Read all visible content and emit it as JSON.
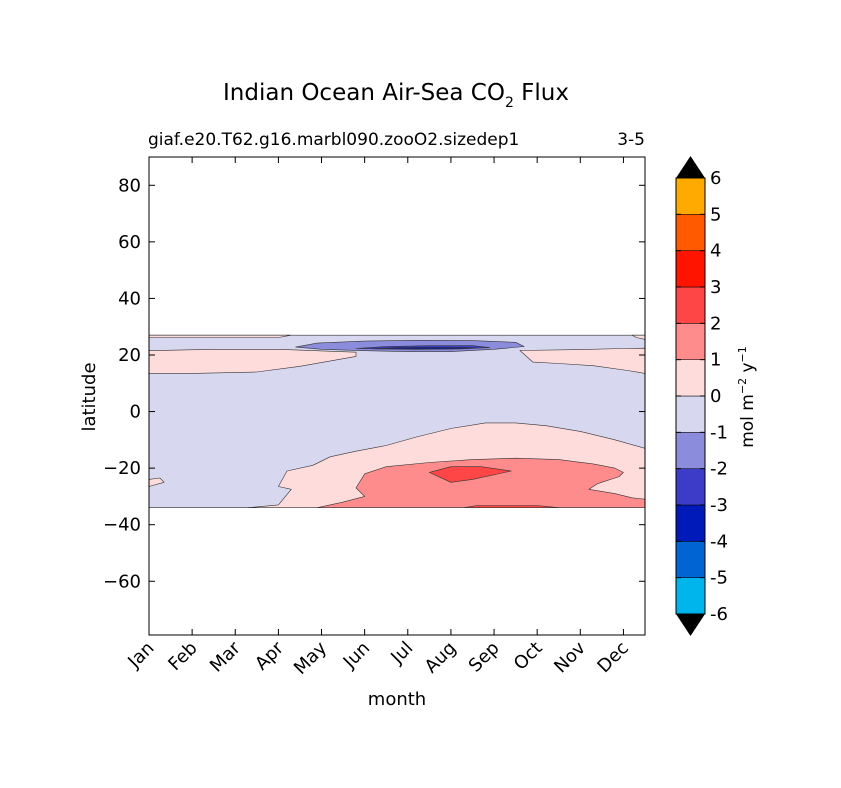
{
  "figure": {
    "title": "Indian Ocean Air-Sea CO",
    "title_sub": "2",
    "title_suffix": " Flux",
    "case_label": "giaf.e20.T62.g16.marbl090.zooO2.sizedep1",
    "period_label": "3-5"
  },
  "chart_data": {
    "type": "heatmap",
    "title": "Indian Ocean Air-Sea CO2 Flux",
    "xlabel": "month",
    "ylabel": "latitude",
    "x_ticks": [
      "Jan",
      "Feb",
      "Mar",
      "Apr",
      "May",
      "Jun",
      "Jul",
      "Aug",
      "Sep",
      "Oct",
      "Nov",
      "Dec"
    ],
    "xlim": [
      0,
      11.5
    ],
    "y_ticks": [
      80,
      60,
      40,
      20,
      0,
      -20,
      -40,
      -60
    ],
    "y_tick_labels": [
      "80",
      "60",
      "40",
      "20",
      "0",
      "−20",
      "−40",
      "−60"
    ],
    "ylim": [
      -79,
      90
    ],
    "data_lat_range": [
      -34,
      27
    ],
    "grid": false,
    "colorbar": {
      "label": "mol m",
      "label_sup1": "−2",
      "label_mid": "  y",
      "label_sup2": "−1",
      "levels": [
        -7,
        -6,
        -5,
        -4,
        -3,
        -2,
        -1,
        0,
        1,
        2,
        3,
        4,
        5,
        6,
        7
      ],
      "tick_labels": [
        "-6",
        "-5",
        "-4",
        "-3",
        "-2",
        "-1",
        "0",
        "1",
        "2",
        "3",
        "4",
        "5",
        "6"
      ],
      "tick_values": [
        -6,
        -5,
        -4,
        -3,
        -2,
        -1,
        0,
        1,
        2,
        3,
        4,
        5,
        6
      ],
      "colors": [
        "#00ffff",
        "#00b4ec",
        "#0064d2",
        "#0019b9",
        "#3c3cc8",
        "#8c8cdc",
        "#d7d7f0",
        "#ffdcdc",
        "#ff8c8c",
        "#ff4646",
        "#ff1400",
        "#ff5a00",
        "#ffaa00",
        "#ffff00"
      ],
      "extend": "both"
    },
    "contour_regions": [
      {
        "level_range": [
          -1,
          0
        ],
        "points": [
          [
            0,
            27
          ],
          [
            11.5,
            27
          ],
          [
            11.5,
            -34
          ],
          [
            0,
            -34
          ]
        ]
      },
      {
        "level_range": [
          0,
          1
        ],
        "points": [
          [
            0,
            27
          ],
          [
            3.3,
            27
          ],
          [
            3.0,
            26.2
          ],
          [
            0,
            26.2
          ]
        ]
      },
      {
        "level_range": [
          0,
          1
        ],
        "points": [
          [
            11.5,
            27
          ],
          [
            11.5,
            25.5
          ],
          [
            11.3,
            26.2
          ],
          [
            11.2,
            27
          ]
        ]
      },
      {
        "level_range": [
          0,
          1
        ],
        "points": [
          [
            0,
            21.5
          ],
          [
            1.5,
            22
          ],
          [
            3.0,
            22
          ],
          [
            4.8,
            21
          ],
          [
            4.8,
            19.5
          ],
          [
            3.5,
            16
          ],
          [
            2.5,
            14
          ],
          [
            1.0,
            13.5
          ],
          [
            0,
            13.5
          ]
        ]
      },
      {
        "level_range": [
          0,
          1
        ],
        "points": [
          [
            8.6,
            21.6
          ],
          [
            10.0,
            21.9
          ],
          [
            11.0,
            22.3
          ],
          [
            11.5,
            22.4
          ],
          [
            11.5,
            13.5
          ],
          [
            11.1,
            14.5
          ],
          [
            10.3,
            16.2
          ],
          [
            9.5,
            17
          ],
          [
            8.9,
            17.5
          ]
        ]
      },
      {
        "level_range": [
          0,
          1
        ],
        "points": [
          [
            0,
            -24
          ],
          [
            0.25,
            -23.5
          ],
          [
            0.35,
            -25
          ],
          [
            0,
            -26.5
          ]
        ]
      },
      {
        "level_range": [
          0,
          1
        ],
        "points": [
          [
            2.3,
            -34
          ],
          [
            3.0,
            -33
          ],
          [
            3.3,
            -27.5
          ],
          [
            3.0,
            -26.5
          ],
          [
            3.2,
            -21
          ],
          [
            3.8,
            -19
          ],
          [
            4.2,
            -16
          ],
          [
            4.8,
            -14
          ],
          [
            5.5,
            -12
          ],
          [
            6.2,
            -9
          ],
          [
            7.0,
            -6
          ],
          [
            7.8,
            -4
          ],
          [
            8.5,
            -4
          ],
          [
            9.2,
            -5
          ],
          [
            10.0,
            -7
          ],
          [
            10.8,
            -10
          ],
          [
            11.5,
            -13
          ],
          [
            11.5,
            -34
          ]
        ]
      },
      {
        "level_range": [
          1,
          2
        ],
        "points": [
          [
            3.9,
            -34
          ],
          [
            4.5,
            -32
          ],
          [
            5.0,
            -30
          ],
          [
            4.8,
            -27
          ],
          [
            5.0,
            -22
          ],
          [
            5.5,
            -19.5
          ],
          [
            6.5,
            -18
          ],
          [
            7.5,
            -17
          ],
          [
            8.5,
            -16.5
          ],
          [
            9.5,
            -17
          ],
          [
            10.3,
            -18.5
          ],
          [
            10.8,
            -20
          ],
          [
            11.0,
            -21.5
          ],
          [
            10.9,
            -23
          ],
          [
            10.4,
            -25.5
          ],
          [
            10.2,
            -27.5
          ],
          [
            10.8,
            -29
          ],
          [
            11.2,
            -30.5
          ],
          [
            11.5,
            -31
          ],
          [
            11.5,
            -34
          ]
        ]
      },
      {
        "level_range": [
          2,
          3
        ],
        "points": [
          [
            6.5,
            -21.5
          ],
          [
            7.0,
            -19.5
          ],
          [
            7.7,
            -19.5
          ],
          [
            8.4,
            -21
          ],
          [
            7.5,
            -24
          ],
          [
            7.0,
            -25
          ]
        ]
      },
      {
        "level_range": [
          2,
          3
        ],
        "points": [
          [
            7.3,
            -34
          ],
          [
            7.6,
            -33.2
          ],
          [
            9.0,
            -33.2
          ],
          [
            9.5,
            -34
          ]
        ]
      },
      {
        "level_range": [
          -2,
          -1
        ],
        "points": [
          [
            3.4,
            22.8
          ],
          [
            3.9,
            24.2
          ],
          [
            5.0,
            24.9
          ],
          [
            6.2,
            25.2
          ],
          [
            7.5,
            25.1
          ],
          [
            8.5,
            24.5
          ],
          [
            8.7,
            23
          ],
          [
            8.0,
            22
          ],
          [
            7.0,
            21.2
          ],
          [
            6.0,
            21.2
          ],
          [
            5.0,
            21.5
          ],
          [
            4.0,
            22
          ]
        ]
      },
      {
        "level_range": [
          -3,
          -2
        ],
        "points": [
          [
            4.8,
            22.3
          ],
          [
            5.5,
            23
          ],
          [
            6.5,
            23.3
          ],
          [
            7.5,
            23.3
          ],
          [
            7.9,
            22.6
          ],
          [
            7.2,
            22.1
          ],
          [
            6.2,
            22
          ],
          [
            5.5,
            22.1
          ]
        ]
      },
      {
        "level_range": [
          -4,
          -3
        ],
        "points": [
          [
            5.2,
            22.2
          ],
          [
            5.8,
            22.6
          ],
          [
            6.5,
            22.7
          ],
          [
            7.3,
            22.6
          ],
          [
            7.6,
            22.4
          ],
          [
            7.0,
            22.2
          ],
          [
            6.0,
            22.2
          ]
        ]
      }
    ]
  }
}
